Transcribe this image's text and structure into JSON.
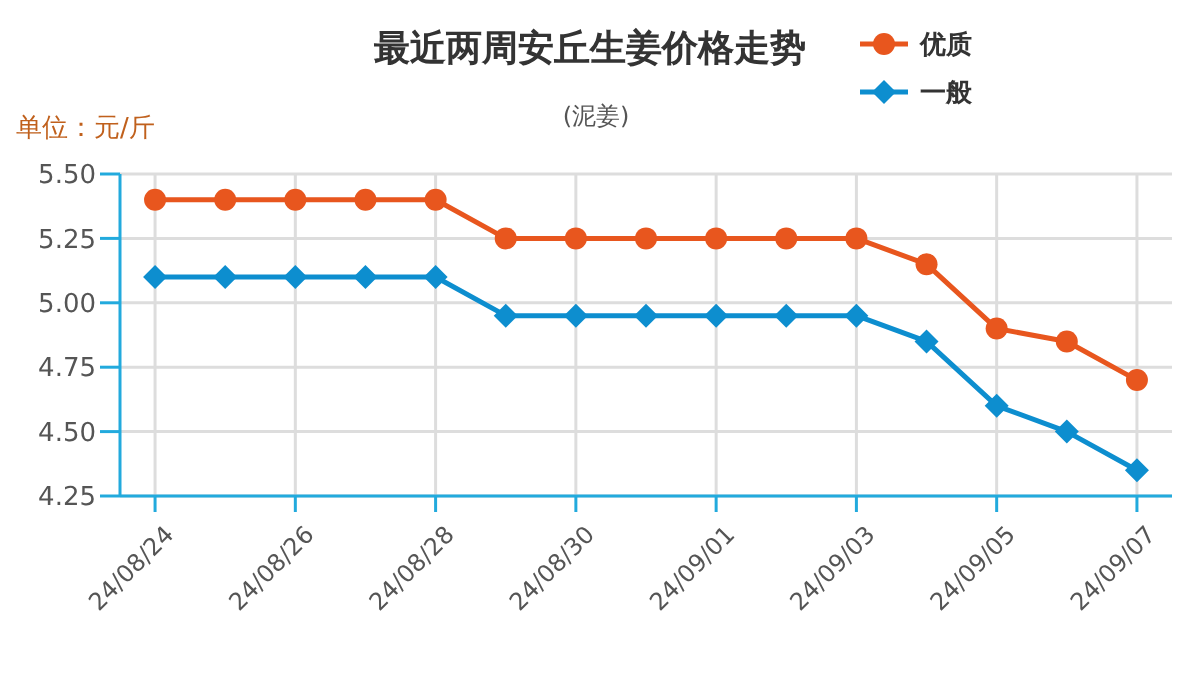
{
  "chart_data": {
    "type": "line",
    "title": "最近两周安丘生姜价格走势",
    "subtitle": "(泥姜)",
    "ylabel": "单位：元/斤",
    "categories": [
      "24/08/24",
      null,
      "24/08/26",
      null,
      "24/08/28",
      null,
      "24/08/30",
      null,
      "24/09/01",
      null,
      "24/09/03",
      null,
      "24/09/05",
      null,
      "24/09/07"
    ],
    "series": [
      {
        "name": "优质",
        "color": "#e8561e",
        "marker": "circle",
        "values": [
          5.4,
          5.4,
          5.4,
          5.4,
          5.4,
          5.25,
          5.25,
          5.25,
          5.25,
          5.25,
          5.25,
          5.15,
          4.9,
          4.85,
          4.7
        ]
      },
      {
        "name": "一般",
        "color": "#0d8ecf",
        "marker": "diamond",
        "values": [
          5.1,
          5.1,
          5.1,
          5.1,
          5.1,
          4.95,
          4.95,
          4.95,
          4.95,
          4.95,
          4.95,
          4.85,
          4.6,
          4.5,
          4.35
        ]
      }
    ],
    "ylim": [
      4.25,
      5.5
    ],
    "yticks": [
      {
        "value": 4.25,
        "label": "4.25"
      },
      {
        "value": 4.5,
        "label": "4.50"
      },
      {
        "value": 4.75,
        "label": "4.75"
      },
      {
        "value": 5,
        "label": "5.00"
      },
      {
        "value": 5.25,
        "label": "5.25"
      },
      {
        "value": 5.5,
        "label": "5.50"
      }
    ],
    "grid": true,
    "legend": "top right",
    "line_style": "solid"
  }
}
